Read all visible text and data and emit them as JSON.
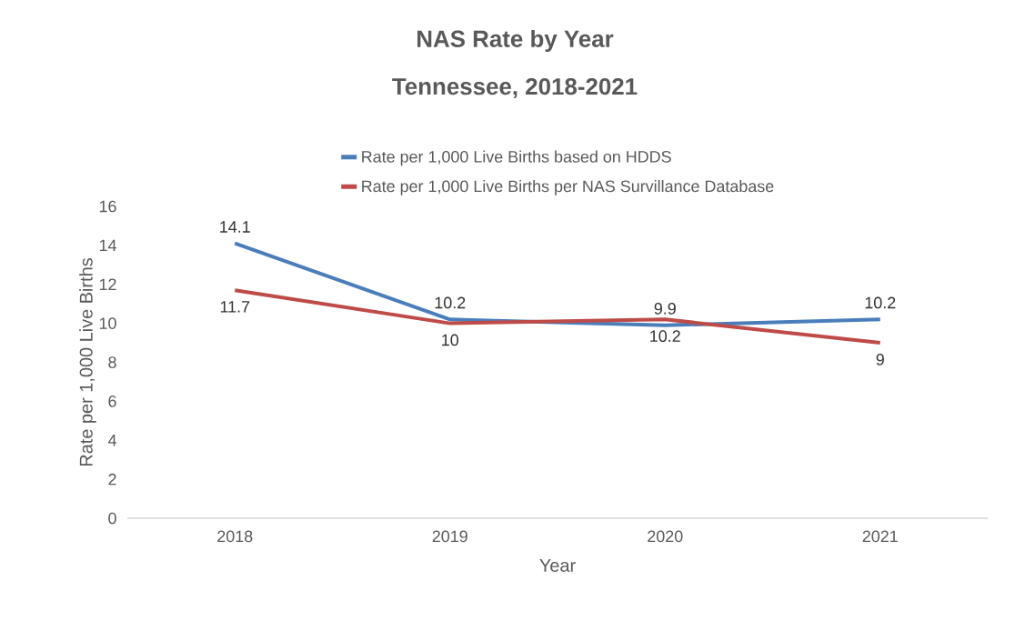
{
  "chart_data": {
    "type": "line",
    "title": "NAS Rate by Year",
    "subtitle": "Tennessee, 2018-2021",
    "xlabel": "Year",
    "ylabel": "Rate per 1,000 Live Births",
    "categories": [
      "2018",
      "2019",
      "2020",
      "2021"
    ],
    "series": [
      {
        "name": "Rate per 1,000 Live Births based on HDDS",
        "color": "#4a7ebb",
        "values": [
          14.1,
          10.2,
          9.9,
          10.2
        ]
      },
      {
        "name": "Rate per 1,000 Live Births per NAS Survillance Database",
        "color": "#be4b48",
        "values": [
          11.7,
          10,
          10.2,
          9
        ]
      }
    ],
    "ylim": [
      0,
      16
    ],
    "yticks": [
      0,
      2,
      4,
      6,
      8,
      10,
      12,
      14,
      16
    ],
    "grid": false,
    "legend": "top",
    "marker": "none",
    "line_style": "solid",
    "data_labels": true
  }
}
